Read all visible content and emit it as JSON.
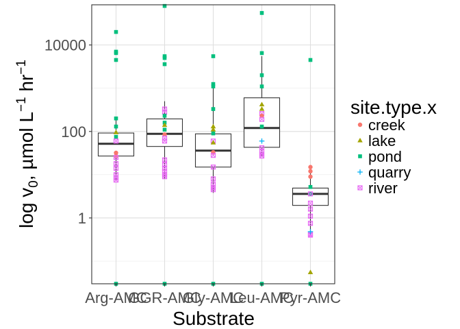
{
  "chart_data": {
    "type": "box",
    "xlabel": "Substrate",
    "ylabel_parts": {
      "pre": "log v",
      "sub": "0",
      "mid": ", µmol L",
      "sup1": "−1",
      "mid2": " hr",
      "sup2": "−1"
    },
    "ylabel_text": "log v0, µmol L−1 hr−1",
    "y_scale": "log10",
    "ylim": [
      0.03,
      85000
    ],
    "y_ticks": [
      {
        "value": 1,
        "label": "1"
      },
      {
        "value": 100,
        "label": "100"
      },
      {
        "value": 10000,
        "label": "10000"
      }
    ],
    "categories": [
      "Arg-AMC",
      "GGR-AMC",
      "Gly-AMC",
      "Leu-AMC",
      "Pyr-AMC"
    ],
    "boxes": [
      {
        "q1": 27,
        "median": 52,
        "q3": 92,
        "lower": 7.5,
        "upper": 200
      },
      {
        "q1": 45,
        "median": 88,
        "q3": 195,
        "lower": 8,
        "upper": 500
      },
      {
        "q1": 15,
        "median": 36,
        "q3": 88,
        "lower": 3.8,
        "upper": 1250
      },
      {
        "q1": 43,
        "median": 120,
        "q3": 600,
        "lower": 27,
        "upper": 5500
      },
      {
        "q1": 1.95,
        "median": 3.6,
        "q3": 4.9,
        "lower": 0.5,
        "upper": 15
      }
    ],
    "legend_title": "site.type.x",
    "legend_position": "right",
    "series": [
      {
        "name": "creek",
        "color": "#F8766D",
        "shape": "circle"
      },
      {
        "name": "lake",
        "color": "#A3A500",
        "shape": "triangle"
      },
      {
        "name": "pond",
        "color": "#00BF7D",
        "shape": "square"
      },
      {
        "name": "quarry",
        "color": "#00B0F6",
        "shape": "plus"
      },
      {
        "name": "river",
        "color": "#E76BF3",
        "shape": "square-cross"
      }
    ],
    "points": [
      {
        "cat": 0,
        "series": "pond",
        "y": 20000
      },
      {
        "cat": 0,
        "series": "pond",
        "y": 7000
      },
      {
        "cat": 0,
        "series": "pond",
        "y": 6500
      },
      {
        "cat": 0,
        "series": "pond",
        "y": 4500
      },
      {
        "cat": 0,
        "series": "pond",
        "y": 200
      },
      {
        "cat": 0,
        "series": "pond",
        "y": 130
      },
      {
        "cat": 0,
        "series": "lake",
        "y": 95
      },
      {
        "cat": 0,
        "series": "pond",
        "y": 75
      },
      {
        "cat": 0,
        "series": "river",
        "y": 60
      },
      {
        "cat": 0,
        "series": "creek",
        "y": 32
      },
      {
        "cat": 0,
        "series": "creek",
        "y": 27
      },
      {
        "cat": 0,
        "series": "river",
        "y": 25
      },
      {
        "cat": 0,
        "series": "river",
        "y": 18
      },
      {
        "cat": 0,
        "series": "river",
        "y": 14
      },
      {
        "cat": 0,
        "series": "river",
        "y": 10
      },
      {
        "cat": 0,
        "series": "river",
        "y": 8.5
      },
      {
        "cat": 0,
        "series": "river",
        "y": 7.5
      },
      {
        "cat": 0,
        "series": "pond",
        "y": 0.03
      },
      {
        "cat": 1,
        "series": "pond",
        "y": 80000
      },
      {
        "cat": 1,
        "series": "pond",
        "y": 5500
      },
      {
        "cat": 1,
        "series": "pond",
        "y": 5000
      },
      {
        "cat": 1,
        "series": "pond",
        "y": 3600
      },
      {
        "cat": 1,
        "series": "river",
        "y": 330
      },
      {
        "cat": 1,
        "series": "river",
        "y": 280
      },
      {
        "cat": 1,
        "series": "pond",
        "y": 230
      },
      {
        "cat": 1,
        "series": "pond",
        "y": 160
      },
      {
        "cat": 1,
        "series": "lake",
        "y": 140
      },
      {
        "cat": 1,
        "series": "pond",
        "y": 110
      },
      {
        "cat": 1,
        "series": "creek",
        "y": 85
      },
      {
        "cat": 1,
        "series": "river",
        "y": 70
      },
      {
        "cat": 1,
        "series": "river",
        "y": 60
      },
      {
        "cat": 1,
        "series": "river",
        "y": 22
      },
      {
        "cat": 1,
        "series": "river",
        "y": 17
      },
      {
        "cat": 1,
        "series": "river",
        "y": 14
      },
      {
        "cat": 1,
        "series": "river",
        "y": 12
      },
      {
        "cat": 1,
        "series": "river",
        "y": 10
      },
      {
        "cat": 1,
        "series": "river",
        "y": 9
      },
      {
        "cat": 1,
        "series": "pond",
        "y": 0.03
      },
      {
        "cat": 2,
        "series": "pond",
        "y": 5500
      },
      {
        "cat": 2,
        "series": "pond",
        "y": 1250
      },
      {
        "cat": 2,
        "series": "pond",
        "y": 1100
      },
      {
        "cat": 2,
        "series": "pond",
        "y": 330
      },
      {
        "cat": 2,
        "series": "lake",
        "y": 130
      },
      {
        "cat": 2,
        "series": "lake",
        "y": 110
      },
      {
        "cat": 2,
        "series": "pond",
        "y": 90
      },
      {
        "cat": 2,
        "series": "river",
        "y": 60
      },
      {
        "cat": 2,
        "series": "lake",
        "y": 55
      },
      {
        "cat": 2,
        "series": "creek",
        "y": 33
      },
      {
        "cat": 2,
        "series": "river",
        "y": 28
      },
      {
        "cat": 2,
        "series": "river",
        "y": 15
      },
      {
        "cat": 2,
        "series": "river",
        "y": 8
      },
      {
        "cat": 2,
        "series": "river",
        "y": 6
      },
      {
        "cat": 2,
        "series": "river",
        "y": 5
      },
      {
        "cat": 2,
        "series": "river",
        "y": 4.5
      },
      {
        "cat": 2,
        "series": "pond",
        "y": 0.03
      },
      {
        "cat": 3,
        "series": "pond",
        "y": 55000
      },
      {
        "cat": 3,
        "series": "pond",
        "y": 6500
      },
      {
        "cat": 3,
        "series": "pond",
        "y": 2000
      },
      {
        "cat": 3,
        "series": "pond",
        "y": 1100
      },
      {
        "cat": 3,
        "series": "lake",
        "y": 420
      },
      {
        "cat": 3,
        "series": "lake",
        "y": 330
      },
      {
        "cat": 3,
        "series": "river",
        "y": 260
      },
      {
        "cat": 3,
        "series": "creek",
        "y": 230
      },
      {
        "cat": 3,
        "series": "river",
        "y": 190
      },
      {
        "cat": 3,
        "series": "pond",
        "y": 130
      },
      {
        "cat": 3,
        "series": "quarry",
        "y": 60
      },
      {
        "cat": 3,
        "series": "river",
        "y": 42
      },
      {
        "cat": 3,
        "series": "river",
        "y": 35
      },
      {
        "cat": 3,
        "series": "river",
        "y": 30
      },
      {
        "cat": 3,
        "series": "river",
        "y": 27
      },
      {
        "cat": 3,
        "series": "pond",
        "y": 0.03
      },
      {
        "cat": 4,
        "series": "pond",
        "y": 4500
      },
      {
        "cat": 4,
        "series": "creek",
        "y": 15
      },
      {
        "cat": 4,
        "series": "creek",
        "y": 12
      },
      {
        "cat": 4,
        "series": "creek",
        "y": 9
      },
      {
        "cat": 4,
        "series": "pond",
        "y": 5.2
      },
      {
        "cat": 4,
        "series": "pond",
        "y": 3.6
      },
      {
        "cat": 4,
        "series": "river",
        "y": 3.6
      },
      {
        "cat": 4,
        "series": "river",
        "y": 2.2
      },
      {
        "cat": 4,
        "series": "river",
        "y": 1.6
      },
      {
        "cat": 4,
        "series": "river",
        "y": 1.1
      },
      {
        "cat": 4,
        "series": "river",
        "y": 0.75
      },
      {
        "cat": 4,
        "series": "river",
        "y": 0.42
      },
      {
        "cat": 4,
        "series": "river",
        "y": 0.4
      },
      {
        "cat": 4,
        "series": "quarry",
        "y": 0.48
      },
      {
        "cat": 4,
        "series": "lake",
        "y": 0.055
      },
      {
        "cat": 4,
        "series": "pond",
        "y": 0.03
      }
    ]
  }
}
